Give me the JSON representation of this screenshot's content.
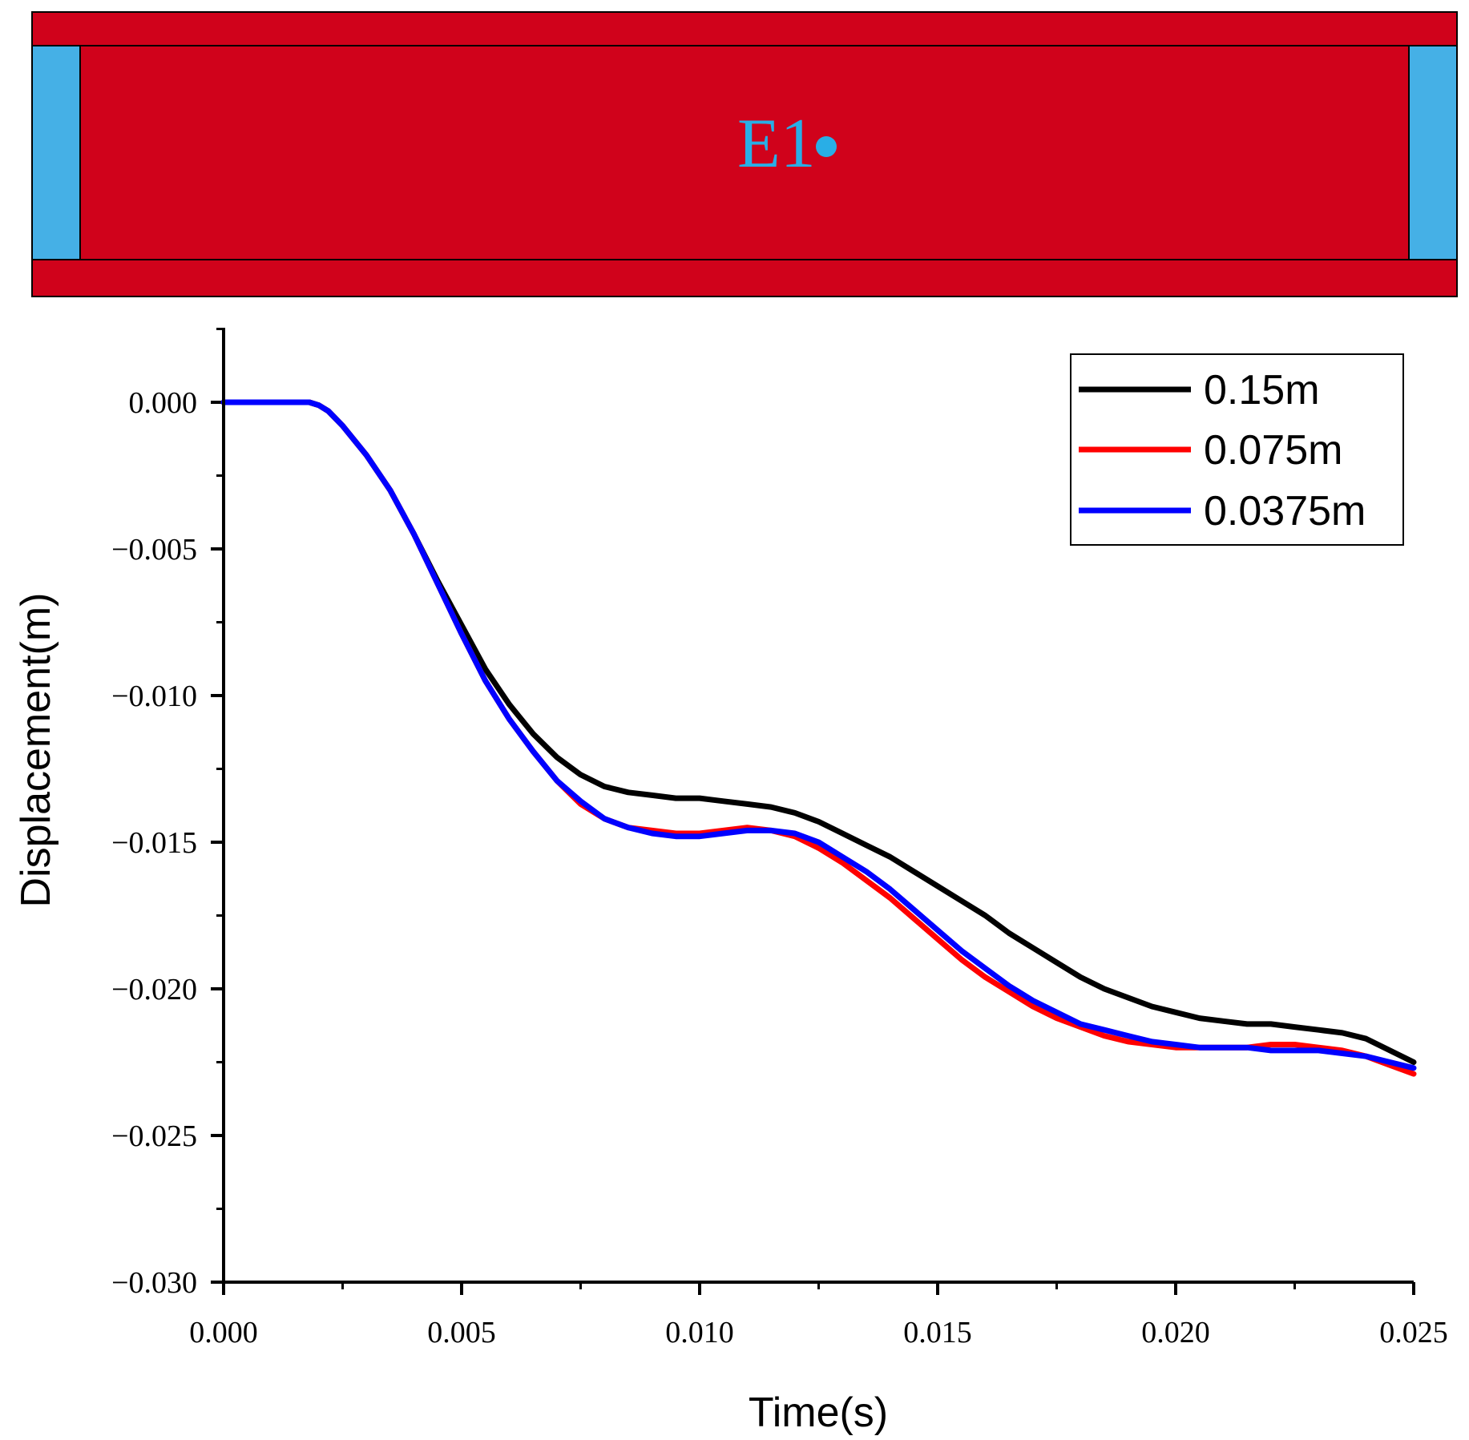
{
  "diagram": {
    "marker_label": "E1",
    "colors": {
      "body": "#d0021b",
      "end": "#45b0e6",
      "marker": "#29aee6",
      "outline": "#000000"
    }
  },
  "chart_data": {
    "type": "line",
    "title": "",
    "xlabel": "Time(s)",
    "ylabel": "Displacement(m)",
    "xlim": [
      0,
      0.025
    ],
    "ylim": [
      -0.03,
      0.0025
    ],
    "xticks": [
      "0.000",
      "0.005",
      "0.010",
      "0.015",
      "0.020",
      "0.025"
    ],
    "yticks": [
      "0.000",
      "−0.005",
      "−0.010",
      "−0.015",
      "−0.020",
      "−0.025",
      "−0.030"
    ],
    "xtick_values": [
      0,
      0.005,
      0.01,
      0.015,
      0.02,
      0.025
    ],
    "ytick_values": [
      0,
      -0.005,
      -0.01,
      -0.015,
      -0.02,
      -0.025,
      -0.03
    ],
    "legend_position": "top-right",
    "series": [
      {
        "name": "0.15m",
        "color": "#000000",
        "x": [
          0,
          0.0005,
          0.001,
          0.0015,
          0.0018,
          0.002,
          0.0022,
          0.0025,
          0.003,
          0.0035,
          0.004,
          0.0045,
          0.005,
          0.0055,
          0.006,
          0.0065,
          0.007,
          0.0075,
          0.008,
          0.0085,
          0.009,
          0.0095,
          0.01,
          0.0105,
          0.011,
          0.0115,
          0.012,
          0.0125,
          0.013,
          0.0135,
          0.014,
          0.0145,
          0.015,
          0.0155,
          0.016,
          0.0165,
          0.017,
          0.0175,
          0.018,
          0.0185,
          0.019,
          0.0195,
          0.02,
          0.0205,
          0.021,
          0.0215,
          0.022,
          0.0225,
          0.023,
          0.0235,
          0.024,
          0.0245,
          0.025
        ],
        "y": [
          0,
          0,
          0,
          0,
          0,
          -0.0001,
          -0.0003,
          -0.0008,
          -0.0018,
          -0.003,
          -0.0045,
          -0.0061,
          -0.0076,
          -0.0091,
          -0.0103,
          -0.0113,
          -0.0121,
          -0.0127,
          -0.0131,
          -0.0133,
          -0.0134,
          -0.0135,
          -0.0135,
          -0.0136,
          -0.0137,
          -0.0138,
          -0.014,
          -0.0143,
          -0.0147,
          -0.0151,
          -0.0155,
          -0.016,
          -0.0165,
          -0.017,
          -0.0175,
          -0.0181,
          -0.0186,
          -0.0191,
          -0.0196,
          -0.02,
          -0.0203,
          -0.0206,
          -0.0208,
          -0.021,
          -0.0211,
          -0.0212,
          -0.0212,
          -0.0213,
          -0.0214,
          -0.0215,
          -0.0217,
          -0.0221,
          -0.0225
        ]
      },
      {
        "name": "0.075m",
        "color": "#ff0000",
        "x": [
          0,
          0.0005,
          0.001,
          0.0015,
          0.0018,
          0.002,
          0.0022,
          0.0025,
          0.003,
          0.0035,
          0.004,
          0.0045,
          0.005,
          0.0055,
          0.006,
          0.0065,
          0.007,
          0.0075,
          0.008,
          0.0085,
          0.009,
          0.0095,
          0.01,
          0.0105,
          0.011,
          0.0115,
          0.012,
          0.0125,
          0.013,
          0.0135,
          0.014,
          0.0145,
          0.015,
          0.0155,
          0.016,
          0.0165,
          0.017,
          0.0175,
          0.018,
          0.0185,
          0.019,
          0.0195,
          0.02,
          0.0205,
          0.021,
          0.0215,
          0.022,
          0.0225,
          0.023,
          0.0235,
          0.024,
          0.0245,
          0.025
        ],
        "y": [
          0,
          0,
          0,
          0,
          0,
          -0.0001,
          -0.0003,
          -0.0008,
          -0.0018,
          -0.003,
          -0.0045,
          -0.0062,
          -0.0079,
          -0.0095,
          -0.0108,
          -0.0119,
          -0.0129,
          -0.0137,
          -0.0142,
          -0.0145,
          -0.0146,
          -0.0147,
          -0.0147,
          -0.0146,
          -0.0145,
          -0.0146,
          -0.0148,
          -0.0152,
          -0.0157,
          -0.0163,
          -0.0169,
          -0.0176,
          -0.0183,
          -0.019,
          -0.0196,
          -0.0201,
          -0.0206,
          -0.021,
          -0.0213,
          -0.0216,
          -0.0218,
          -0.0219,
          -0.022,
          -0.022,
          -0.022,
          -0.022,
          -0.0219,
          -0.0219,
          -0.022,
          -0.0221,
          -0.0223,
          -0.0226,
          -0.0229
        ]
      },
      {
        "name": "0.0375m",
        "color": "#0000ff",
        "x": [
          0,
          0.0005,
          0.001,
          0.0015,
          0.0018,
          0.002,
          0.0022,
          0.0025,
          0.003,
          0.0035,
          0.004,
          0.0045,
          0.005,
          0.0055,
          0.006,
          0.0065,
          0.007,
          0.0075,
          0.008,
          0.0085,
          0.009,
          0.0095,
          0.01,
          0.0105,
          0.011,
          0.0115,
          0.012,
          0.0125,
          0.013,
          0.0135,
          0.014,
          0.0145,
          0.015,
          0.0155,
          0.016,
          0.0165,
          0.017,
          0.0175,
          0.018,
          0.0185,
          0.019,
          0.0195,
          0.02,
          0.0205,
          0.021,
          0.0215,
          0.022,
          0.0225,
          0.023,
          0.0235,
          0.024,
          0.0245,
          0.025
        ],
        "y": [
          0,
          0,
          0,
          0,
          0,
          -0.0001,
          -0.0003,
          -0.0008,
          -0.0018,
          -0.003,
          -0.0045,
          -0.0062,
          -0.0079,
          -0.0095,
          -0.0108,
          -0.0119,
          -0.0129,
          -0.0136,
          -0.0142,
          -0.0145,
          -0.0147,
          -0.0148,
          -0.0148,
          -0.0147,
          -0.0146,
          -0.0146,
          -0.0147,
          -0.015,
          -0.0155,
          -0.016,
          -0.0166,
          -0.0173,
          -0.018,
          -0.0187,
          -0.0193,
          -0.0199,
          -0.0204,
          -0.0208,
          -0.0212,
          -0.0214,
          -0.0216,
          -0.0218,
          -0.0219,
          -0.022,
          -0.022,
          -0.022,
          -0.0221,
          -0.0221,
          -0.0221,
          -0.0222,
          -0.0223,
          -0.0225,
          -0.0227
        ]
      }
    ]
  }
}
